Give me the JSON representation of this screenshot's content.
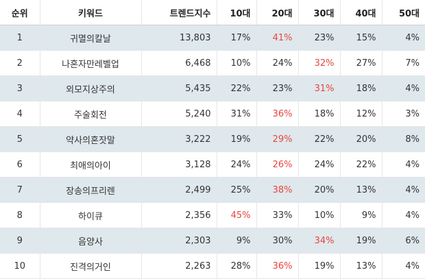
{
  "table": {
    "headers": [
      "순위",
      "키워드",
      "트렌드지수",
      "10대",
      "20대",
      "30대",
      "40대",
      "50대"
    ],
    "highlight_color": "#e8453c",
    "rows": [
      {
        "rank": "1",
        "keyword": "귀멸의칼날",
        "trend": "13,803",
        "a10": "17%",
        "a20": "41%",
        "a30": "23%",
        "a40": "15%",
        "a50": "4%",
        "highlight": "a20"
      },
      {
        "rank": "2",
        "keyword": "나혼자만레벨업",
        "trend": "6,468",
        "a10": "10%",
        "a20": "24%",
        "a30": "32%",
        "a40": "27%",
        "a50": "7%",
        "highlight": "a30"
      },
      {
        "rank": "3",
        "keyword": "외모지상주의",
        "trend": "5,435",
        "a10": "22%",
        "a20": "23%",
        "a30": "31%",
        "a40": "18%",
        "a50": "4%",
        "highlight": "a30"
      },
      {
        "rank": "4",
        "keyword": "주술회전",
        "trend": "5,240",
        "a10": "31%",
        "a20": "36%",
        "a30": "18%",
        "a40": "12%",
        "a50": "3%",
        "highlight": "a20"
      },
      {
        "rank": "5",
        "keyword": "약사의혼잣말",
        "trend": "3,222",
        "a10": "19%",
        "a20": "29%",
        "a30": "22%",
        "a40": "20%",
        "a50": "8%",
        "highlight": "a20"
      },
      {
        "rank": "6",
        "keyword": "최애의아이",
        "trend": "3,128",
        "a10": "24%",
        "a20": "26%",
        "a30": "24%",
        "a40": "22%",
        "a50": "4%",
        "highlight": "a20"
      },
      {
        "rank": "7",
        "keyword": "장송의프리렌",
        "trend": "2,499",
        "a10": "25%",
        "a20": "38%",
        "a30": "20%",
        "a40": "13%",
        "a50": "4%",
        "highlight": "a20"
      },
      {
        "rank": "8",
        "keyword": "하이큐",
        "trend": "2,356",
        "a10": "45%",
        "a20": "33%",
        "a30": "10%",
        "a40": "9%",
        "a50": "4%",
        "highlight": "a10"
      },
      {
        "rank": "9",
        "keyword": "음양사",
        "trend": "2,303",
        "a10": "9%",
        "a20": "30%",
        "a30": "34%",
        "a40": "19%",
        "a50": "6%",
        "highlight": "a30"
      },
      {
        "rank": "10",
        "keyword": "진격의거인",
        "trend": "2,263",
        "a10": "28%",
        "a20": "36%",
        "a30": "19%",
        "a40": "13%",
        "a50": "4%",
        "highlight": "a20"
      }
    ]
  }
}
